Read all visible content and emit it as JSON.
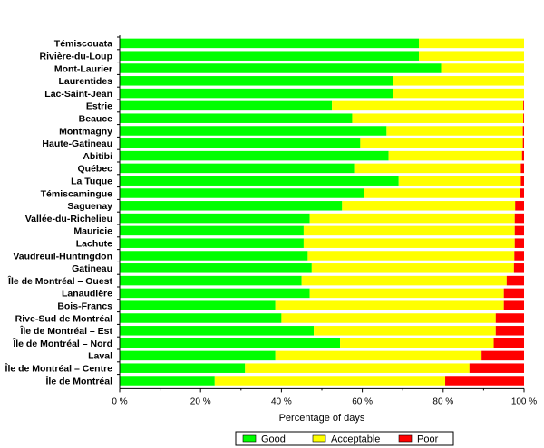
{
  "chart_data": {
    "type": "bar",
    "orientation": "horizontal",
    "stacked": true,
    "xlabel": "Percentage of days",
    "xlim": [
      0,
      100
    ],
    "xticks": [
      0,
      20,
      40,
      60,
      80,
      100
    ],
    "xtick_labels": [
      "0 %",
      "20 %",
      "40 %",
      "60 %",
      "80 %",
      "100 %"
    ],
    "legend_position": "bottom-center",
    "categories": [
      "Témiscouata",
      "Rivière-du-Loup",
      "Mont-Laurier",
      "Laurentides",
      "Lac-Saint-Jean",
      "Estrie",
      "Beauce",
      "Montmagny",
      "Haute-Gatineau",
      "Abitibi",
      "Québec",
      "La Tuque",
      "Témiscamingue",
      "Saguenay",
      "Vallée-du-Richelieu",
      "Mauricie",
      "Lachute",
      "Vaudreuil-Huntingdon",
      "Gatineau",
      "Île de Montréal – Ouest",
      "Lanaudière",
      "Bois-Francs",
      "Rive-Sud de Montréal",
      "Île de Montréal – Est",
      "Île de Montréal – Nord",
      "Laval",
      "Île de Montréal – Centre",
      "Île de Montréal"
    ],
    "series": [
      {
        "name": "Good",
        "color": "#00ff00",
        "values": [
          74,
          74,
          79.5,
          67.5,
          67.5,
          52.5,
          57.5,
          66,
          59.5,
          66.5,
          58,
          69,
          60.5,
          55,
          47,
          45.5,
          45.5,
          46.5,
          47.5,
          45,
          47,
          38.5,
          40,
          48,
          54.5,
          38.5,
          31,
          23.5
        ]
      },
      {
        "name": "Acceptable",
        "color": "#ffff00",
        "values": [
          26,
          26,
          20.5,
          32.5,
          32.5,
          47.3,
          42.3,
          33.7,
          40.2,
          33,
          41.2,
          30.2,
          38.6,
          42.8,
          50.7,
          52.2,
          52.2,
          51.1,
          50,
          50.7,
          48,
          56.5,
          53,
          45,
          38,
          51,
          55.5,
          57
        ]
      },
      {
        "name": "Poor",
        "color": "#ff0000",
        "values": [
          0,
          0,
          0,
          0,
          0,
          0.2,
          0.2,
          0.3,
          0.3,
          0.5,
          0.8,
          0.8,
          0.9,
          2.2,
          2.3,
          2.3,
          2.3,
          2.4,
          2.5,
          4.3,
          5,
          5,
          7,
          7,
          7.5,
          10.5,
          13.5,
          19.5
        ]
      }
    ]
  }
}
